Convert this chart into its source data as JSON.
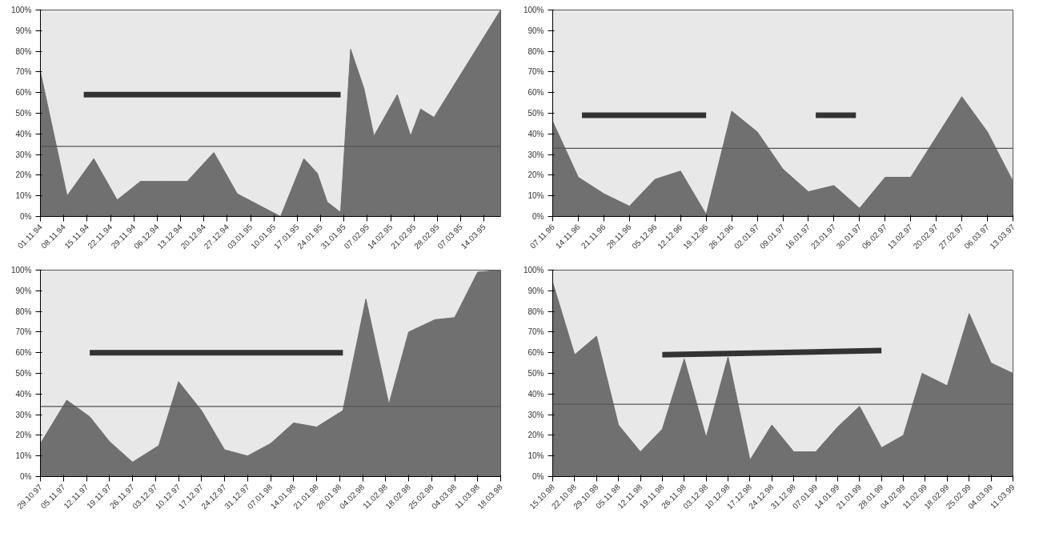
{
  "chart_data": [
    {
      "type": "area",
      "xlim": [
        "1994-11-01",
        "1995-03-19"
      ],
      "ylim": [
        0,
        100
      ],
      "yticks": [
        {
          "value": 0,
          "label": "0%"
        },
        {
          "value": 10,
          "label": "10%"
        },
        {
          "value": 20,
          "label": "20%"
        },
        {
          "value": 30,
          "label": "30%"
        },
        {
          "value": 40,
          "label": "40%"
        },
        {
          "value": 50,
          "label": "50%"
        },
        {
          "value": 60,
          "label": "60%"
        },
        {
          "value": 70,
          "label": "70%"
        },
        {
          "value": 80,
          "label": "80%"
        },
        {
          "value": 90,
          "label": "90%"
        },
        {
          "value": 100,
          "label": "100%"
        }
      ],
      "xticks": [
        {
          "value": "1994-11-01",
          "label": "01.11.94"
        },
        {
          "value": "1994-11-08",
          "label": "08.11.94"
        },
        {
          "value": "1994-11-15",
          "label": "15.11.94"
        },
        {
          "value": "1994-11-22",
          "label": "22.11.94"
        },
        {
          "value": "1994-11-29",
          "label": "29.11.94"
        },
        {
          "value": "1994-12-06",
          "label": "06.12.94"
        },
        {
          "value": "1994-12-13",
          "label": "13.12.94"
        },
        {
          "value": "1994-12-20",
          "label": "20.12.94"
        },
        {
          "value": "1994-12-27",
          "label": "27.12.94"
        },
        {
          "value": "1995-01-03",
          "label": "03.01.95"
        },
        {
          "value": "1995-01-10",
          "label": "10.01.95"
        },
        {
          "value": "1995-01-17",
          "label": "17.01.95"
        },
        {
          "value": "1995-01-24",
          "label": "24.01.95"
        },
        {
          "value": "1995-01-31",
          "label": "31.01.95"
        },
        {
          "value": "1995-02-07",
          "label": "07.02.95"
        },
        {
          "value": "1995-02-14",
          "label": "14.02.95"
        },
        {
          "value": "1995-02-21",
          "label": "21.02.95"
        },
        {
          "value": "1995-02-28",
          "label": "28.02.95"
        },
        {
          "value": "1995-03-07",
          "label": "07.03.95"
        },
        {
          "value": "1995-03-14",
          "label": "14.03.95"
        }
      ],
      "series": [
        {
          "color": "#707070",
          "x": [
            "1994-11-01",
            "1994-11-09",
            "1994-11-17",
            "1994-11-24",
            "1994-12-01",
            "1994-12-08",
            "1994-12-15",
            "1994-12-23",
            "1994-12-30",
            "1995-01-12",
            "1995-01-19",
            "1995-01-23",
            "1995-01-26",
            "1995-01-30",
            "1995-02-02",
            "1995-02-06",
            "1995-02-09",
            "1995-02-16",
            "1995-02-20",
            "1995-02-23",
            "1995-02-27",
            "1995-03-19"
          ],
          "values": [
            70,
            10,
            28,
            8,
            17,
            17,
            17,
            31,
            11,
            0,
            28,
            21,
            7,
            2,
            81,
            62,
            39,
            59,
            39,
            52,
            48,
            100
          ]
        },
        {
          "type": "line",
          "color": "#333333",
          "x": [
            "1994-11-14",
            "1995-01-30"
          ],
          "values": [
            59,
            59
          ]
        }
      ],
      "ref_lines": [
        {
          "axis": "y",
          "value": 34,
          "color": "#555555",
          "line_style": "solid"
        }
      ],
      "grid": false
    },
    {
      "type": "area",
      "xlim": [
        "1996-11-07",
        "1997-03-13"
      ],
      "ylim": [
        0,
        100
      ],
      "yticks": [
        {
          "value": 0,
          "label": "0%"
        },
        {
          "value": 10,
          "label": "10%"
        },
        {
          "value": 20,
          "label": "20%"
        },
        {
          "value": 30,
          "label": "30%"
        },
        {
          "value": 40,
          "label": "40%"
        },
        {
          "value": 50,
          "label": "50%"
        },
        {
          "value": 60,
          "label": "60%"
        },
        {
          "value": 70,
          "label": "70%"
        },
        {
          "value": 80,
          "label": "80%"
        },
        {
          "value": 90,
          "label": "90%"
        },
        {
          "value": 100,
          "label": "100%"
        }
      ],
      "xticks": [
        {
          "value": "1996-11-07",
          "label": "07.11.96"
        },
        {
          "value": "1996-11-14",
          "label": "14.11.96"
        },
        {
          "value": "1996-11-21",
          "label": "21.11.96"
        },
        {
          "value": "1996-11-28",
          "label": "28.11.96"
        },
        {
          "value": "1996-12-05",
          "label": "05.12.96"
        },
        {
          "value": "1996-12-12",
          "label": "12.12.96"
        },
        {
          "value": "1996-12-19",
          "label": "19.12.96"
        },
        {
          "value": "1996-12-26",
          "label": "26.12.96"
        },
        {
          "value": "1997-01-02",
          "label": "02.01.97"
        },
        {
          "value": "1997-01-09",
          "label": "09.01.97"
        },
        {
          "value": "1997-01-16",
          "label": "16.01.97"
        },
        {
          "value": "1997-01-23",
          "label": "23.01.97"
        },
        {
          "value": "1997-01-30",
          "label": "30.01.97"
        },
        {
          "value": "1997-02-06",
          "label": "06.02.97"
        },
        {
          "value": "1997-02-13",
          "label": "13.02.97"
        },
        {
          "value": "1997-02-20",
          "label": "20.02.97"
        },
        {
          "value": "1997-02-27",
          "label": "27.02.97"
        },
        {
          "value": "1997-03-06",
          "label": "06.03.97"
        },
        {
          "value": "1997-03-13",
          "label": "13.03.97"
        }
      ],
      "series": [
        {
          "color": "#707070",
          "x": [
            "1996-11-07",
            "1996-11-14",
            "1996-11-21",
            "1996-11-28",
            "1996-12-05",
            "1996-12-12",
            "1996-12-19",
            "1996-12-26",
            "1997-01-02",
            "1997-01-09",
            "1997-01-16",
            "1997-01-23",
            "1997-01-30",
            "1997-02-06",
            "1997-02-13",
            "1997-02-27",
            "1997-03-06",
            "1997-03-13"
          ],
          "values": [
            46,
            19,
            11,
            5,
            18,
            22,
            1,
            51,
            41,
            23,
            12,
            15,
            4,
            19,
            19,
            58,
            41,
            17
          ]
        },
        {
          "type": "line",
          "color": "#333333",
          "x": [
            "1996-11-15",
            "1996-12-19"
          ],
          "values": [
            49,
            49
          ]
        },
        {
          "type": "line",
          "color": "#333333",
          "x": [
            "1997-01-18",
            "1997-01-29"
          ],
          "values": [
            49,
            49
          ]
        }
      ],
      "ref_lines": [
        {
          "axis": "y",
          "value": 33,
          "color": "#555555",
          "line_style": "solid"
        }
      ],
      "grid": false
    },
    {
      "type": "area",
      "xlim": [
        "1997-10-29",
        "1998-03-18"
      ],
      "ylim": [
        0,
        100
      ],
      "yticks": [
        {
          "value": 0,
          "label": "0%"
        },
        {
          "value": 10,
          "label": "10%"
        },
        {
          "value": 20,
          "label": "20%"
        },
        {
          "value": 30,
          "label": "30%"
        },
        {
          "value": 40,
          "label": "40%"
        },
        {
          "value": 50,
          "label": "50%"
        },
        {
          "value": 60,
          "label": "60%"
        },
        {
          "value": 70,
          "label": "70%"
        },
        {
          "value": 80,
          "label": "80%"
        },
        {
          "value": 90,
          "label": "90%"
        },
        {
          "value": 100,
          "label": "100%"
        }
      ],
      "xticks": [
        {
          "value": "1997-10-29",
          "label": "29.10.97"
        },
        {
          "value": "1997-11-05",
          "label": "05.11.97"
        },
        {
          "value": "1997-11-12",
          "label": "12.11.97"
        },
        {
          "value": "1997-11-19",
          "label": "19.11.97"
        },
        {
          "value": "1997-11-26",
          "label": "26.11.97"
        },
        {
          "value": "1997-12-03",
          "label": "03.12.97"
        },
        {
          "value": "1997-12-10",
          "label": "10.12.97"
        },
        {
          "value": "1997-12-17",
          "label": "17.12.97"
        },
        {
          "value": "1997-12-24",
          "label": "24.12.97"
        },
        {
          "value": "1997-12-31",
          "label": "31.12.97"
        },
        {
          "value": "1998-01-07",
          "label": "07.01.98"
        },
        {
          "value": "1998-01-14",
          "label": "14.01.98"
        },
        {
          "value": "1998-01-21",
          "label": "21.01.98"
        },
        {
          "value": "1998-01-28",
          "label": "28.01.98"
        },
        {
          "value": "1998-02-04",
          "label": "04.02.98"
        },
        {
          "value": "1998-02-11",
          "label": "11.02.98"
        },
        {
          "value": "1998-02-18",
          "label": "18.02.98"
        },
        {
          "value": "1998-02-25",
          "label": "25.02.98"
        },
        {
          "value": "1998-03-04",
          "label": "04.03.98"
        },
        {
          "value": "1998-03-11",
          "label": "11.03.98"
        },
        {
          "value": "1998-03-18",
          "label": "18.03.98"
        }
      ],
      "series": [
        {
          "color": "#707070",
          "x": [
            "1997-10-29",
            "1997-11-06",
            "1997-11-13",
            "1997-11-19",
            "1997-11-26",
            "1997-12-04",
            "1997-12-10",
            "1997-12-17",
            "1997-12-24",
            "1997-12-31",
            "1998-01-07",
            "1998-01-14",
            "1998-01-21",
            "1998-01-29",
            "1998-02-05",
            "1998-02-12",
            "1998-02-18",
            "1998-02-26",
            "1998-03-04",
            "1998-03-11",
            "1998-03-18"
          ],
          "values": [
            16,
            37,
            29,
            17,
            7,
            15,
            46,
            32,
            13,
            10,
            16,
            26,
            24,
            32,
            86,
            35,
            70,
            76,
            77,
            99,
            100
          ]
        },
        {
          "type": "line",
          "color": "#333333",
          "x": [
            "1997-11-13",
            "1998-01-29"
          ],
          "values": [
            60,
            60
          ]
        }
      ],
      "ref_lines": [
        {
          "axis": "y",
          "value": 34,
          "color": "#555555",
          "line_style": "solid"
        }
      ],
      "grid": false
    },
    {
      "type": "area",
      "xlim": [
        "1998-10-15",
        "1999-03-11"
      ],
      "ylim": [
        0,
        100
      ],
      "yticks": [
        {
          "value": 0,
          "label": "0%"
        },
        {
          "value": 10,
          "label": "10%"
        },
        {
          "value": 20,
          "label": "20%"
        },
        {
          "value": 30,
          "label": "30%"
        },
        {
          "value": 40,
          "label": "40%"
        },
        {
          "value": 50,
          "label": "50%"
        },
        {
          "value": 60,
          "label": "60%"
        },
        {
          "value": 70,
          "label": "70%"
        },
        {
          "value": 80,
          "label": "80%"
        },
        {
          "value": 90,
          "label": "90%"
        },
        {
          "value": 100,
          "label": "100%"
        }
      ],
      "xticks": [
        {
          "value": "1998-10-15",
          "label": "15.10.98"
        },
        {
          "value": "1998-10-22",
          "label": "22.10.98"
        },
        {
          "value": "1998-10-29",
          "label": "29.10.98"
        },
        {
          "value": "1998-11-05",
          "label": "05.11.98"
        },
        {
          "value": "1998-11-12",
          "label": "12.11.98"
        },
        {
          "value": "1998-11-19",
          "label": "19.11.98"
        },
        {
          "value": "1998-11-26",
          "label": "26.11.98"
        },
        {
          "value": "1998-12-03",
          "label": "03.12.98"
        },
        {
          "value": "1998-12-10",
          "label": "10.12.98"
        },
        {
          "value": "1998-12-17",
          "label": "17.12.98"
        },
        {
          "value": "1998-12-24",
          "label": "24.12.98"
        },
        {
          "value": "1998-12-31",
          "label": "31.12.98"
        },
        {
          "value": "1999-01-07",
          "label": "07.01.99"
        },
        {
          "value": "1999-01-14",
          "label": "14.01.99"
        },
        {
          "value": "1999-01-21",
          "label": "21.01.99"
        },
        {
          "value": "1999-01-28",
          "label": "28.01.99"
        },
        {
          "value": "1999-02-04",
          "label": "04.02.99"
        },
        {
          "value": "1999-02-11",
          "label": "11.02.99"
        },
        {
          "value": "1999-02-18",
          "label": "18.02.99"
        },
        {
          "value": "1999-02-25",
          "label": "25.02.99"
        },
        {
          "value": "1999-03-04",
          "label": "04.03.99"
        },
        {
          "value": "1999-03-11",
          "label": "11.03.99"
        }
      ],
      "series": [
        {
          "color": "#707070",
          "x": [
            "1998-10-15",
            "1998-10-22",
            "1998-10-29",
            "1998-11-05",
            "1998-11-12",
            "1998-11-19",
            "1998-11-26",
            "1998-12-03",
            "1998-12-10",
            "1998-12-17",
            "1998-12-24",
            "1998-12-31",
            "1999-01-07",
            "1999-01-14",
            "1999-01-21",
            "1999-01-28",
            "1999-02-04",
            "1999-02-10",
            "1999-02-18",
            "1999-02-25",
            "1999-03-04",
            "1999-03-11"
          ],
          "values": [
            94,
            59,
            68,
            25,
            12,
            23,
            57,
            19,
            58,
            8,
            25,
            12,
            12,
            24,
            34,
            14,
            20,
            50,
            44,
            79,
            55,
            50
          ]
        },
        {
          "type": "line",
          "color": "#333333",
          "x": [
            "1998-11-19",
            "1999-01-28"
          ],
          "values": [
            59,
            61
          ]
        }
      ],
      "ref_lines": [
        {
          "axis": "y",
          "value": 35,
          "color": "#555555",
          "line_style": "solid"
        }
      ],
      "grid": false
    }
  ]
}
